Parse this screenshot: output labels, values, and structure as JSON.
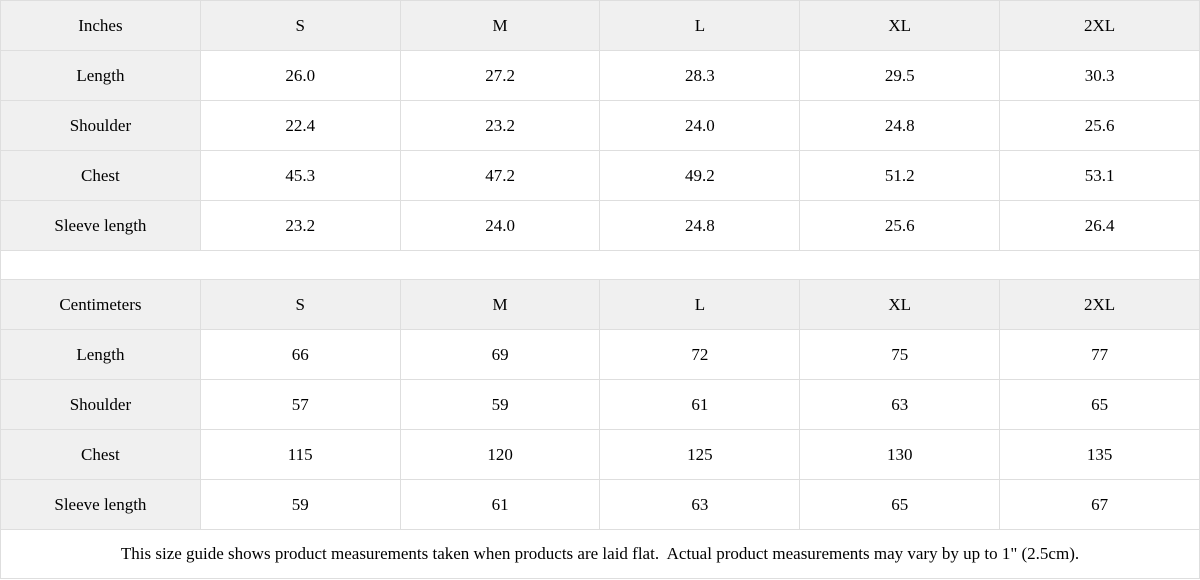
{
  "colors": {
    "header_bg": "#f0f0f0",
    "border": "#dedede",
    "text": "#000000",
    "background": "#ffffff"
  },
  "tables": [
    {
      "unit": "Inches",
      "sizes": [
        "S",
        "M",
        "L",
        "XL",
        "2XL"
      ],
      "rows": [
        {
          "label": "Length",
          "values": [
            "26.0",
            "27.2",
            "28.3",
            "29.5",
            "30.3"
          ]
        },
        {
          "label": "Shoulder",
          "values": [
            "22.4",
            "23.2",
            "24.0",
            "24.8",
            "25.6"
          ]
        },
        {
          "label": "Chest",
          "values": [
            "45.3",
            "47.2",
            "49.2",
            "51.2",
            "53.1"
          ]
        },
        {
          "label": "Sleeve length",
          "values": [
            "23.2",
            "24.0",
            "24.8",
            "25.6",
            "26.4"
          ]
        }
      ]
    },
    {
      "unit": "Centimeters",
      "sizes": [
        "S",
        "M",
        "L",
        "XL",
        "2XL"
      ],
      "rows": [
        {
          "label": "Length",
          "values": [
            "66",
            "69",
            "72",
            "75",
            "77"
          ]
        },
        {
          "label": "Shoulder",
          "values": [
            "57",
            "59",
            "61",
            "63",
            "65"
          ]
        },
        {
          "label": "Chest",
          "values": [
            "115",
            "120",
            "125",
            "130",
            "135"
          ]
        },
        {
          "label": "Sleeve length",
          "values": [
            "59",
            "61",
            "63",
            "65",
            "67"
          ]
        }
      ]
    }
  ],
  "page": {
    "footer_note": "This size guide shows product measurements taken when products are laid flat.  Actual product measurements may vary by up to 1\" (2.5cm)."
  }
}
